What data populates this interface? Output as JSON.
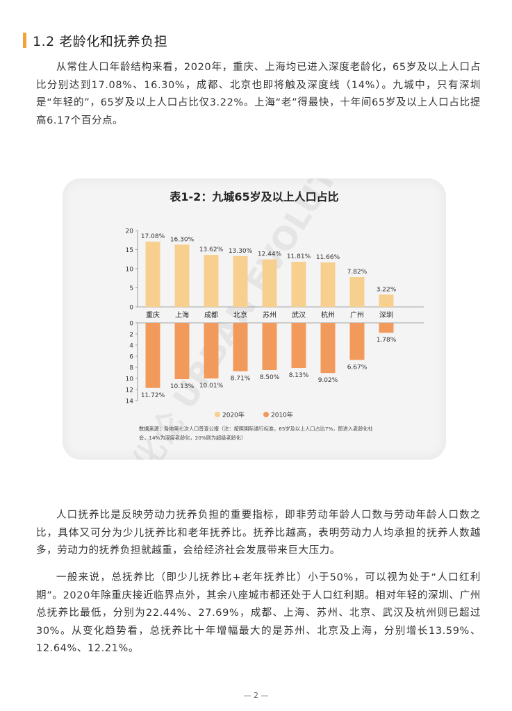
{
  "section": {
    "number_title": "1.2 老龄化和抚养负担"
  },
  "paragraphs": [
    "从常住人口年龄结构来看，2020年，重庆、上海均已进入深度老龄化，65岁及以上人口占比分别达到17.08%、16.30%，成都、北京也即将触及深度线（14%）。九城中，只有深圳是“年轻的”，65岁及以上人口占比仅3.22%。上海“老”得最快，十年间65岁及以上人口占比提高6.17个百分点。",
    "人口抚养比是反映劳动力抚养负担的重要指标，即非劳动年龄人口数与劳动年龄人口数之比，具体又可分为少儿抚养比和老年抚养比。抚养比越高，表明劳动力人均承担的抚养人数越多，劳动力的抚养负担就越重，会给经济社会发展带来巨大压力。",
    "一般来说，总抚养比（即少儿抚养比+老年抚养比）小于50%，可以视为处于“人口红利期”。2020年除重庆接近临界点外，其余八座城市都还处于人口红利期。相对年轻的深圳、广州总抚养比最低，分别为22.44%、27.69%，成都、上海、苏州、北京、武汉及杭州则已超过30%。从变化趋势看，总抚养比十年增幅最大的是苏州、北京及上海，分别增长13.59%、12.64%、12.21%。"
  ],
  "chart_data": {
    "type": "bar",
    "title": "表1-2：九城65岁及以上人口占比",
    "categories": [
      "重庆",
      "上海",
      "成都",
      "北京",
      "苏州",
      "武汉",
      "杭州",
      "广州",
      "深圳"
    ],
    "series": [
      {
        "name": "2020年",
        "color": "#f7cf8f",
        "values": [
          17.08,
          16.3,
          13.62,
          13.3,
          12.44,
          11.81,
          11.66,
          7.82,
          3.22
        ],
        "labels": [
          "17.08%",
          "16.30%",
          "13.62%",
          "13.30%",
          "12.44%",
          "11.81%",
          "11.66%",
          "7.82%",
          "3.22%"
        ]
      },
      {
        "name": "2010年",
        "color": "#f29a5c",
        "values": [
          11.72,
          10.13,
          10.01,
          8.71,
          8.5,
          8.13,
          9.02,
          6.67,
          1.78
        ],
        "labels": [
          "11.72%",
          "10.13%",
          "10.01%",
          "8.71%",
          "8.50%",
          "8.13%",
          "9.02%",
          "6.67%",
          "1.78%"
        ]
      }
    ],
    "top_axis": {
      "ylim": [
        0,
        20
      ],
      "ticks": [
        "0",
        "5",
        "10",
        "15",
        "20"
      ]
    },
    "bottom_axis": {
      "ylim": [
        0,
        14
      ],
      "ticks": [
        "0",
        "2",
        "4",
        "6",
        "8",
        "10",
        "12",
        "14"
      ]
    },
    "legend_position": "bottom-center",
    "source_note": [
      "数据来源：各地第七次人口普查公报（注：按照国际通行标准，65岁及以上人口占比7%，即进入老龄化社",
      "会，14%为深度老龄化，20%则为超级老龄化）"
    ],
    "watermark": "城市进化论 URBAN EVOLUTION"
  },
  "footer": {
    "page_number": "— 2 —"
  }
}
